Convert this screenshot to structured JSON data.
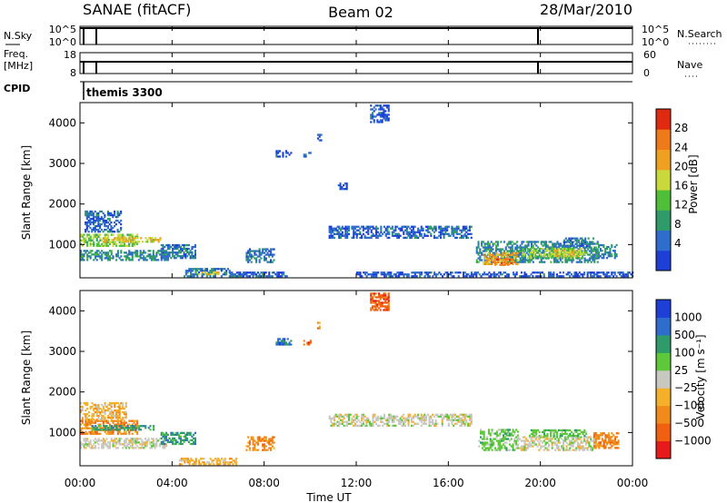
{
  "header": {
    "title": "SANAE (fitACF)",
    "beam": "Beam 02",
    "date": "28/Mar/2010"
  },
  "status_panels": {
    "nsky": {
      "label_left": "N.Sky",
      "left_ticks": [
        "10^5",
        "10^0"
      ],
      "label_right": "N.Search",
      "right_ticks": [
        "10^5",
        "10^0"
      ]
    },
    "freq": {
      "label_left_1": "Freq.",
      "label_left_2": "[MHz]",
      "left_ticks": [
        "18",
        "8"
      ],
      "label_right": "Nave",
      "right_ticks": [
        "60",
        "0"
      ]
    },
    "cpid": {
      "label": "CPID",
      "value": "themis 3300"
    }
  },
  "colors": {
    "power": [
      "#1e3fd6",
      "#2f6dcc",
      "#2f9a6a",
      "#4fbf3a",
      "#c9d93a",
      "#f0a020",
      "#ef7a1a",
      "#e02a10"
    ],
    "velocity": [
      "#e61a1a",
      "#f06010",
      "#f08a1a",
      "#f5b02a",
      "#c8c8c0",
      "#5cc83a",
      "#2f9a6a",
      "#2f6dcc",
      "#1e3fd6"
    ]
  },
  "chart_data": [
    {
      "type": "heatmap",
      "title": "",
      "ylabel": "Slant Range [km]",
      "xlabel": "",
      "xlim": [
        0,
        24
      ],
      "ylim": [
        180,
        4500
      ],
      "xticks": [
        "00:00",
        "04:00",
        "08:00",
        "12:00",
        "16:00",
        "20:00",
        "00:00"
      ],
      "yticks": [
        1000,
        2000,
        3000,
        4000
      ],
      "colorbar": {
        "label": "Power [dB]",
        "ticks": [
          "28",
          "24",
          "20",
          "16",
          "12",
          "8",
          "4"
        ],
        "range": [
          0,
          30
        ]
      },
      "regions": [
        {
          "t": [
            0.0,
            2.5
          ],
          "r": [
            950,
            1250
          ],
          "v": 14
        },
        {
          "t": [
            1.0,
            3.5
          ],
          "r": [
            1050,
            1150
          ],
          "v": 18
        },
        {
          "t": [
            0.0,
            3.8
          ],
          "r": [
            600,
            850
          ],
          "v": 8
        },
        {
          "t": [
            0.2,
            1.8
          ],
          "r": [
            1300,
            1800
          ],
          "v": 5
        },
        {
          "t": [
            3.5,
            5.0
          ],
          "r": [
            650,
            1000
          ],
          "v": 6
        },
        {
          "t": [
            4.5,
            6.5
          ],
          "r": [
            200,
            400
          ],
          "v": 6
        },
        {
          "t": [
            5.0,
            6.0
          ],
          "r": [
            250,
            300
          ],
          "v": 18
        },
        {
          "t": [
            7.2,
            8.4
          ],
          "r": [
            550,
            900
          ],
          "v": 6
        },
        {
          "t": [
            6.5,
            9.0
          ],
          "r": [
            200,
            300
          ],
          "v": 5
        },
        {
          "t": [
            8.5,
            9.2
          ],
          "r": [
            3150,
            3300
          ],
          "v": 4
        },
        {
          "t": [
            9.7,
            10.0
          ],
          "r": [
            3150,
            3250
          ],
          "v": 4
        },
        {
          "t": [
            10.8,
            17.0
          ],
          "r": [
            1150,
            1450
          ],
          "v": 5
        },
        {
          "t": [
            12.6,
            13.4
          ],
          "r": [
            4000,
            4450
          ],
          "v": 4
        },
        {
          "t": [
            11.2,
            11.6
          ],
          "r": [
            2350,
            2500
          ],
          "v": 4
        },
        {
          "t": [
            10.3,
            10.5
          ],
          "r": [
            3550,
            3700
          ],
          "v": 4
        },
        {
          "t": [
            17.2,
            22.5
          ],
          "r": [
            550,
            1050
          ],
          "v": 8
        },
        {
          "t": [
            17.5,
            19.0
          ],
          "r": [
            500,
            800
          ],
          "v": 20
        },
        {
          "t": [
            18.0,
            18.8
          ],
          "r": [
            480,
            620
          ],
          "v": 24
        },
        {
          "t": [
            19.2,
            21.8
          ],
          "r": [
            650,
            900
          ],
          "v": 14
        },
        {
          "t": [
            20.5,
            22.0
          ],
          "r": [
            700,
            850
          ],
          "v": 18
        },
        {
          "t": [
            21.0,
            22.3
          ],
          "r": [
            950,
            1150
          ],
          "v": 6
        },
        {
          "t": [
            22.5,
            23.3
          ],
          "r": [
            650,
            1000
          ],
          "v": 8
        },
        {
          "t": [
            12.0,
            24.0
          ],
          "r": [
            200,
            300
          ],
          "v": 4
        }
      ]
    },
    {
      "type": "heatmap",
      "title": "",
      "ylabel": "Slant Range [km]",
      "xlabel": "Time UT",
      "xlim": [
        0,
        24
      ],
      "ylim": [
        180,
        4500
      ],
      "xticks": [
        "00:00",
        "04:00",
        "08:00",
        "12:00",
        "16:00",
        "20:00",
        "00:00"
      ],
      "yticks": [
        1000,
        2000,
        3000,
        4000
      ],
      "colorbar": {
        "label": "Velocity [m s⁻¹]",
        "ticks": [
          "1000",
          "500",
          "100",
          "25",
          "−25",
          "−100",
          "−500",
          "−1000"
        ],
        "bins": 9
      },
      "regions": [
        {
          "t": [
            0.0,
            2.5
          ],
          "r": [
            950,
            1300
          ],
          "v": 2
        },
        {
          "t": [
            0.0,
            2.0
          ],
          "r": [
            1300,
            1750
          ],
          "v": 3
        },
        {
          "t": [
            0.0,
            3.8
          ],
          "r": [
            600,
            850
          ],
          "v": 4
        },
        {
          "t": [
            0.5,
            3.2
          ],
          "r": [
            1050,
            1150
          ],
          "v": 6
        },
        {
          "t": [
            3.5,
            5.0
          ],
          "r": [
            700,
            1000
          ],
          "v": 6
        },
        {
          "t": [
            4.3,
            6.8
          ],
          "r": [
            200,
            380
          ],
          "v": 3
        },
        {
          "t": [
            7.2,
            8.4
          ],
          "r": [
            550,
            900
          ],
          "v": 2
        },
        {
          "t": [
            8.5,
            9.2
          ],
          "r": [
            3150,
            3300
          ],
          "v": 7
        },
        {
          "t": [
            9.7,
            10.0
          ],
          "r": [
            3150,
            3250
          ],
          "v": 1
        },
        {
          "t": [
            10.3,
            10.5
          ],
          "r": [
            3550,
            3700
          ],
          "v": 2
        },
        {
          "t": [
            12.6,
            13.4
          ],
          "r": [
            4000,
            4450
          ],
          "v": 1
        },
        {
          "t": [
            10.8,
            17.0
          ],
          "r": [
            1150,
            1450
          ],
          "v": 4
        },
        {
          "t": [
            17.3,
            19.0
          ],
          "r": [
            550,
            1050
          ],
          "v": 5
        },
        {
          "t": [
            19.0,
            22.3
          ],
          "r": [
            550,
            900
          ],
          "v": 4
        },
        {
          "t": [
            19.5,
            22.0
          ],
          "r": [
            900,
            1050
          ],
          "v": 5
        },
        {
          "t": [
            22.3,
            23.4
          ],
          "r": [
            600,
            1000
          ],
          "v": 2
        }
      ]
    }
  ]
}
